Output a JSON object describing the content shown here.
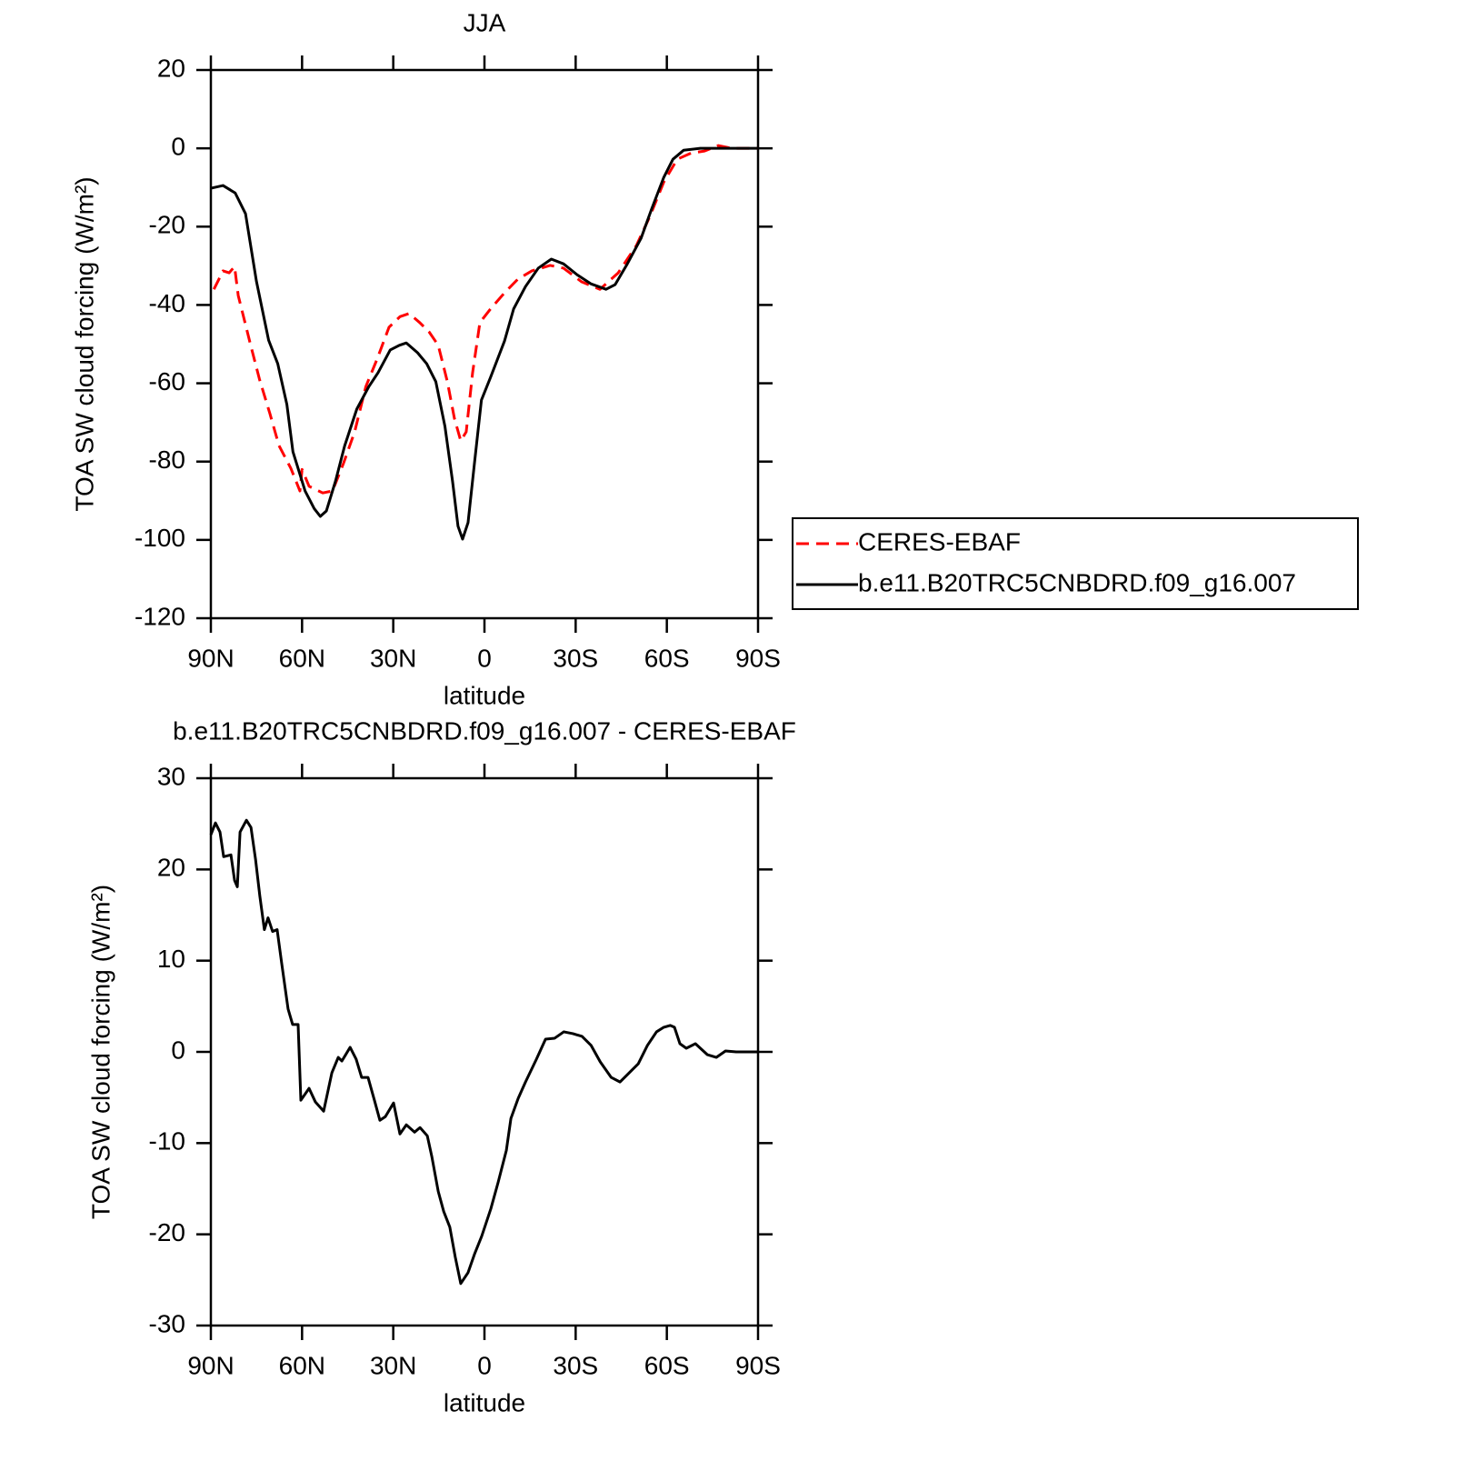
{
  "chart_data": [
    {
      "type": "line",
      "title": "JJA",
      "xlabel": "latitude",
      "ylabel": "TOA SW cloud forcing (W/m²)",
      "xlim": [
        90,
        -90
      ],
      "ylim": [
        20,
        -120
      ],
      "xticks": [
        {
          "value": 90,
          "label": "90N"
        },
        {
          "value": 60,
          "label": "60N"
        },
        {
          "value": 30,
          "label": "30N"
        },
        0,
        {
          "value": -30,
          "label": "30S"
        },
        {
          "value": -60,
          "label": "60S"
        },
        {
          "value": -90,
          "label": "90S"
        }
      ],
      "yticks": [
        20,
        0,
        -20,
        -40,
        -60,
        -80,
        -100,
        -120
      ],
      "legend": "right",
      "series": [
        {
          "name": "CERES-EBAF",
          "color": "#ff0000",
          "linestyle": "dashed",
          "x": [
            89,
            86,
            84,
            82.2,
            81,
            77,
            74,
            70.6,
            67.6,
            63.7,
            60.7,
            60,
            57.7,
            53.2,
            50,
            46.4,
            42.7,
            39,
            35.3,
            31.4,
            27.8,
            24.8,
            21.3,
            18.2,
            15.2,
            12.2,
            9.9,
            7.8,
            6,
            3.9,
            1.5,
            -2,
            -6.6,
            -11,
            -15.6,
            -21.6,
            -26,
            -32,
            -38,
            -44,
            -50,
            -54.4,
            -59,
            -63.4,
            -68,
            -72.4,
            -76.9,
            -81.3,
            -90
          ],
          "values": [
            -36,
            -31.3,
            -31.8,
            -30.2,
            -37.6,
            -50,
            -59,
            -67.7,
            -75.9,
            -81.7,
            -87.5,
            -82,
            -86.3,
            -88,
            -87.5,
            -80.5,
            -72.4,
            -60.8,
            -53.8,
            -45.7,
            -43,
            -42.2,
            -44.5,
            -46.9,
            -50.3,
            -59.6,
            -68.9,
            -74.7,
            -72.4,
            -57.3,
            -44.5,
            -41,
            -36.9,
            -33.4,
            -31.3,
            -29.9,
            -30.6,
            -34.1,
            -36,
            -31.8,
            -24.8,
            -17.4,
            -8.6,
            -2.8,
            -1.2,
            -0.7,
            0.7,
            0,
            0
          ]
        },
        {
          "name": "b.e11.B20TRC5CNBDRD.f09_g16.007",
          "color": "#000000",
          "linestyle": "solid",
          "x": [
            90,
            86,
            82,
            78.6,
            75,
            71,
            68,
            65,
            63,
            59,
            56,
            54,
            52,
            49,
            46,
            42,
            38,
            35,
            31,
            28,
            25.7,
            22,
            19,
            16,
            13,
            10.5,
            8.7,
            7.2,
            5.4,
            3.3,
            1,
            -2,
            -6.6,
            -9.6,
            -13.5,
            -17.7,
            -22,
            -26,
            -30.5,
            -35,
            -40,
            -43,
            -47,
            -51.5,
            -55,
            -59,
            -62,
            -65.5,
            -71,
            -90
          ],
          "values": [
            -10.2,
            -9.5,
            -11.4,
            -16.7,
            -34,
            -49,
            -55,
            -65.4,
            -77.5,
            -87.5,
            -92,
            -94,
            -92.6,
            -85,
            -76,
            -66.6,
            -60.8,
            -57.3,
            -51.5,
            -50.3,
            -49.7,
            -52.2,
            -55,
            -59.6,
            -71,
            -85,
            -96.5,
            -99.8,
            -95.6,
            -80.5,
            -64.3,
            -58.5,
            -49.2,
            -41,
            -35.3,
            -30.6,
            -28.3,
            -29.5,
            -32.3,
            -34.6,
            -36,
            -34.8,
            -29.5,
            -23,
            -15.5,
            -7.4,
            -2.8,
            -0.5,
            0,
            0
          ]
        }
      ]
    },
    {
      "type": "line",
      "title": "b.e11.B20TRC5CNBDRD.f09_g16.007 - CERES-EBAF",
      "xlabel": "latitude",
      "ylabel": "TOA SW cloud forcing (W/m²)",
      "xlim": [
        90,
        -90
      ],
      "ylim": [
        30,
        -30
      ],
      "xticks": [
        {
          "value": 90,
          "label": "90N"
        },
        {
          "value": 60,
          "label": "60N"
        },
        {
          "value": 30,
          "label": "30N"
        },
        0,
        {
          "value": -30,
          "label": "30S"
        },
        {
          "value": -60,
          "label": "60S"
        },
        {
          "value": -90,
          "label": "90S"
        }
      ],
      "yticks": [
        30,
        20,
        10,
        0,
        -10,
        -20,
        -30
      ],
      "series": [
        {
          "color": "#000000",
          "linestyle": "solid",
          "x": [
            90,
            88.5,
            87,
            85.8,
            83.4,
            82.2,
            81.3,
            80.4,
            78.3,
            76.8,
            75.3,
            73.9,
            72.4,
            71.2,
            69.7,
            68.2,
            66.7,
            64.6,
            63.1,
            61.3,
            60.4,
            57.7,
            55.6,
            52.9,
            50.2,
            48.1,
            46.9,
            44.2,
            42.2,
            40.4,
            38.3,
            36.2,
            34.4,
            32.6,
            29.9,
            27.8,
            25.7,
            23,
            21.2,
            18.8,
            17.3,
            15.2,
            13.4,
            11.4,
            9.6,
            7.8,
            5.4,
            3.3,
            0.9,
            -2.1,
            -4.5,
            -7.2,
            -8.7,
            -11.1,
            -13.5,
            -17.1,
            -20.1,
            -23.1,
            -26.1,
            -29.1,
            -32.1,
            -35.1,
            -38.1,
            -41.7,
            -44.6,
            -47.6,
            -50.6,
            -53.6,
            -56.6,
            -59,
            -61.1,
            -62.5,
            -64.3,
            -66.4,
            -69.4,
            -73.3,
            -76.3,
            -79.3,
            -82.8,
            -90
          ],
          "values": [
            23.8,
            25.1,
            24.1,
            21.4,
            21.6,
            18.8,
            18.1,
            24.1,
            25.4,
            24.6,
            21.1,
            17.1,
            13.4,
            14.7,
            13.2,
            13.4,
            9.7,
            4.7,
            3,
            3,
            -5.3,
            -4,
            -5.5,
            -6.5,
            -2.3,
            -0.6,
            -1,
            0.5,
            -0.8,
            -2.8,
            -2.8,
            -5.3,
            -7.5,
            -7.1,
            -5.6,
            -9,
            -8,
            -8.8,
            -8.3,
            -9.2,
            -11.5,
            -15.3,
            -17.5,
            -19.2,
            -22.5,
            -25.4,
            -24.2,
            -22.2,
            -20.2,
            -17.2,
            -14.3,
            -10.8,
            -7.3,
            -5.1,
            -3.3,
            -0.8,
            1.4,
            1.5,
            2.2,
            2,
            1.7,
            0.7,
            -1.1,
            -2.8,
            -3.3,
            -2.3,
            -1.3,
            0.7,
            2.2,
            2.7,
            2.9,
            2.7,
            0.9,
            0.4,
            0.9,
            -0.3,
            -0.6,
            0.1,
            0,
            0
          ]
        }
      ]
    }
  ]
}
